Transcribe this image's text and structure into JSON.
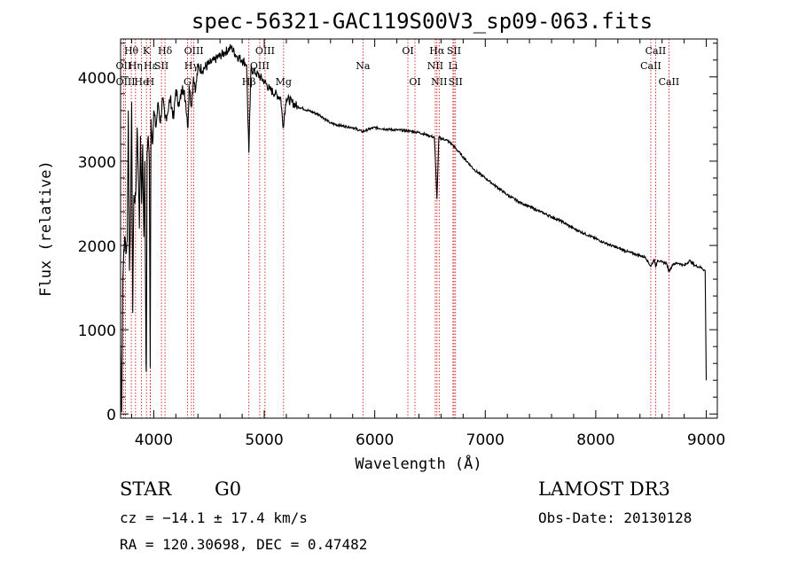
{
  "chart_data": {
    "type": "line",
    "title": "spec-56321-GAC119S00V3_sp09-063.fits",
    "xlabel": "Wavelength (Å)",
    "ylabel": "Flux (relative)",
    "xlim": [
      3700,
      9100
    ],
    "ylim": [
      -50,
      4450
    ],
    "xticks": [
      4000,
      5000,
      6000,
      7000,
      8000,
      9000
    ],
    "yticks": [
      0,
      1000,
      2000,
      3000,
      4000
    ],
    "grid": false,
    "series": [
      {
        "name": "flux",
        "x": [
          3700,
          3710,
          3720,
          3730,
          3740,
          3750,
          3760,
          3770,
          3780,
          3790,
          3800,
          3810,
          3820,
          3830,
          3840,
          3850,
          3860,
          3870,
          3880,
          3890,
          3900,
          3910,
          3920,
          3930,
          3933,
          3940,
          3950,
          3960,
          3968,
          3975,
          3990,
          4000,
          4020,
          4040,
          4060,
          4080,
          4101,
          4120,
          4150,
          4180,
          4200,
          4230,
          4260,
          4290,
          4310,
          4320,
          4340,
          4360,
          4380,
          4400,
          4450,
          4500,
          4550,
          4600,
          4650,
          4700,
          4750,
          4800,
          4840,
          4861,
          4880,
          4920,
          4960,
          5000,
          5050,
          5100,
          5150,
          5170,
          5200,
          5250,
          5300,
          5400,
          5500,
          5600,
          5700,
          5800,
          5890,
          5950,
          6000,
          6100,
          6200,
          6300,
          6400,
          6500,
          6540,
          6563,
          6580,
          6650,
          6700,
          6800,
          6900,
          7000,
          7100,
          7200,
          7300,
          7400,
          7500,
          7600,
          7700,
          7800,
          7900,
          8000,
          8100,
          8200,
          8300,
          8400,
          8450,
          8498,
          8530,
          8542,
          8560,
          8600,
          8640,
          8662,
          8700,
          8750,
          8800,
          8850,
          8900,
          8950,
          8990,
          9000
        ],
        "values": [
          820,
          20,
          1600,
          1950,
          2100,
          1900,
          2050,
          3600,
          1700,
          2300,
          3700,
          1200,
          2600,
          2500,
          2700,
          3400,
          2900,
          2200,
          3300,
          2500,
          3200,
          2100,
          3000,
          600,
          500,
          3100,
          3300,
          3000,
          550,
          3500,
          3200,
          3600,
          3400,
          3700,
          3450,
          3750,
          3500,
          3550,
          3750,
          3500,
          3850,
          3650,
          3900,
          3700,
          3400,
          3900,
          3650,
          4000,
          3850,
          4100,
          4100,
          4150,
          4200,
          4250,
          4300,
          4350,
          4250,
          4200,
          4150,
          3100,
          4100,
          4050,
          4000,
          3950,
          3850,
          3800,
          3750,
          3400,
          3750,
          3700,
          3650,
          3600,
          3550,
          3450,
          3420,
          3400,
          3350,
          3380,
          3400,
          3380,
          3370,
          3360,
          3340,
          3300,
          3280,
          2550,
          3280,
          3250,
          3200,
          3050,
          2900,
          2800,
          2700,
          2600,
          2520,
          2460,
          2400,
          2340,
          2280,
          2200,
          2140,
          2080,
          2020,
          1970,
          1920,
          1880,
          1860,
          1750,
          1840,
          1740,
          1830,
          1800,
          1790,
          1690,
          1780,
          1790,
          1760,
          1820,
          1760,
          1740,
          1700,
          400
        ]
      }
    ],
    "lines": [
      {
        "label": "Hθ",
        "x": 3797,
        "row": 1
      },
      {
        "label": "OII",
        "x": 3727,
        "row": 2
      },
      {
        "label": "OIII",
        "x": 3745,
        "row": 3
      },
      {
        "label": "Hη",
        "x": 3835,
        "row": 2
      },
      {
        "label": "He",
        "x": 3889,
        "row": 3
      },
      {
        "label": "K",
        "x": 3934,
        "row": 1
      },
      {
        "label": "Hε",
        "x": 3970,
        "row": 2
      },
      {
        "label": "H",
        "x": 3968,
        "row": 3
      },
      {
        "label": "SII",
        "x": 4070,
        "row": 2
      },
      {
        "label": "Hδ",
        "x": 4102,
        "row": 1
      },
      {
        "label": "OIII",
        "x": 4363,
        "row": 1
      },
      {
        "label": "Hγ",
        "x": 4341,
        "row": 2
      },
      {
        "label": "G",
        "x": 4305,
        "row": 3
      },
      {
        "label": "Hβ",
        "x": 4861,
        "row": 3
      },
      {
        "label": "OIII",
        "x": 4959,
        "row": 2
      },
      {
        "label": "OIII",
        "x": 5007,
        "row": 1
      },
      {
        "label": "Mg",
        "x": 5175,
        "row": 3
      },
      {
        "label": "Na",
        "x": 5893,
        "row": 2
      },
      {
        "label": "OI",
        "x": 6300,
        "row": 1
      },
      {
        "label": "OI",
        "x": 6364,
        "row": 3
      },
      {
        "label": "NII",
        "x": 6548,
        "row": 2
      },
      {
        "label": "Hα",
        "x": 6563,
        "row": 1
      },
      {
        "label": "NII",
        "x": 6583,
        "row": 3
      },
      {
        "label": "Li",
        "x": 6708,
        "row": 2
      },
      {
        "label": "SII",
        "x": 6717,
        "row": 1
      },
      {
        "label": "SII",
        "x": 6731,
        "row": 3
      },
      {
        "label": "CaII",
        "x": 8498,
        "row": 2
      },
      {
        "label": "CaII",
        "x": 8542,
        "row": 1
      },
      {
        "label": "CaII",
        "x": 8662,
        "row": 3
      }
    ]
  },
  "info": {
    "class_label": "STAR",
    "subclass": "G0",
    "survey": "LAMOST DR3",
    "cz": "cz = −14.1 ± 17.4 km/s",
    "obs_date": "Obs-Date: 20130128",
    "coords": "RA = 120.30698, DEC =   0.47482"
  },
  "colors": {
    "ink": "#000000",
    "line_marker": "#cc0000"
  }
}
